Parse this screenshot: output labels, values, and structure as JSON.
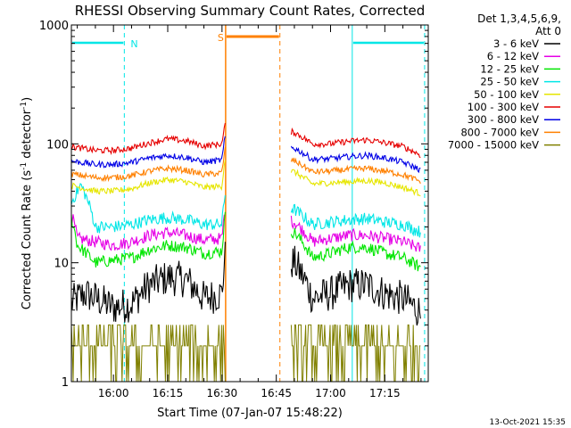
{
  "chart_data": {
    "type": "line",
    "title": "RHESSI Observing Summary Count Rates, Corrected",
    "xlabel": "Start Time (07-Jan-07 15:48:22)",
    "ylabel": "Corrected Count Rate (s⁻¹ detector⁻¹)",
    "ylabel_plain": "Corrected Count Rate (s",
    "ylabel_exp1": "-1",
    "ylabel_mid": " detector",
    "ylabel_exp2": "-1",
    "ylabel_end": ")",
    "y_scale": "log",
    "ylim": [
      1,
      1000
    ],
    "xlim": [
      "15:48:22",
      "17:27:00"
    ],
    "x_ticks": [
      "16:00",
      "16:15",
      "16:30",
      "16:45",
      "17:00",
      "17:15"
    ],
    "y_ticks": [
      "1",
      "10",
      "100",
      "1000"
    ],
    "legend_title_1": "Det 1,3,4,5,6,9,",
    "legend_title_2": "Att 0",
    "legend_placement": "right",
    "timestamp": "13-Oct-2021 15:35",
    "series": [
      {
        "name": "3 - 6 keV",
        "color": "#000000",
        "points": [
          [
            "15:48",
            4.5
          ],
          [
            "15:52",
            5.5
          ],
          [
            "16:00",
            4.2
          ],
          [
            "16:05",
            4.5
          ],
          [
            "16:10",
            6.5
          ],
          [
            "16:15",
            7.5
          ],
          [
            "16:20",
            7.2
          ],
          [
            "16:25",
            5.0
          ],
          [
            "16:30",
            5.5
          ],
          [
            "16:31",
            12
          ],
          [
            "16:50",
            10
          ],
          [
            "16:55",
            5.0
          ],
          [
            "17:00",
            5.5
          ],
          [
            "17:05",
            6.5
          ],
          [
            "17:10",
            6.5
          ],
          [
            "17:15",
            5.5
          ],
          [
            "17:20",
            5.0
          ],
          [
            "17:25",
            3.8
          ]
        ]
      },
      {
        "name": "6 - 12 keV",
        "color": "#e600e6",
        "points": [
          [
            "15:48",
            28
          ],
          [
            "15:50",
            16
          ],
          [
            "16:00",
            14
          ],
          [
            "16:05",
            15
          ],
          [
            "16:10",
            17
          ],
          [
            "16:15",
            18
          ],
          [
            "16:20",
            17
          ],
          [
            "16:25",
            15.5
          ],
          [
            "16:30",
            16
          ],
          [
            "16:31",
            30
          ],
          [
            "16:50",
            22
          ],
          [
            "16:55",
            15
          ],
          [
            "17:00",
            16
          ],
          [
            "17:05",
            17
          ],
          [
            "17:10",
            17
          ],
          [
            "17:15",
            16
          ],
          [
            "17:20",
            15
          ],
          [
            "17:25",
            13
          ]
        ]
      },
      {
        "name": "12 - 25 keV",
        "color": "#00e600",
        "points": [
          [
            "15:48",
            26
          ],
          [
            "15:50",
            14
          ],
          [
            "15:55",
            10
          ],
          [
            "16:00",
            10.5
          ],
          [
            "16:05",
            11
          ],
          [
            "16:10",
            13
          ],
          [
            "16:15",
            14
          ],
          [
            "16:20",
            13.5
          ],
          [
            "16:25",
            12
          ],
          [
            "16:30",
            12.5
          ],
          [
            "16:31",
            26
          ],
          [
            "16:50",
            18
          ],
          [
            "16:55",
            11
          ],
          [
            "17:00",
            12
          ],
          [
            "17:05",
            13.5
          ],
          [
            "17:10",
            13.5
          ],
          [
            "17:15",
            12
          ],
          [
            "17:20",
            11
          ],
          [
            "17:25",
            9
          ]
        ]
      },
      {
        "name": "25 - 50 keV",
        "color": "#00e6e6",
        "points": [
          [
            "15:48",
            30
          ],
          [
            "15:51",
            45
          ],
          [
            "15:55",
            20
          ],
          [
            "16:00",
            20
          ],
          [
            "16:05",
            21
          ],
          [
            "16:10",
            23
          ],
          [
            "16:15",
            24
          ],
          [
            "16:20",
            23
          ],
          [
            "16:25",
            21
          ],
          [
            "16:30",
            21
          ],
          [
            "16:31",
            40
          ],
          [
            "16:50",
            28
          ],
          [
            "16:55",
            21
          ],
          [
            "17:00",
            22
          ],
          [
            "17:05",
            23
          ],
          [
            "17:10",
            23.5
          ],
          [
            "17:15",
            22
          ],
          [
            "17:20",
            21
          ],
          [
            "17:25",
            18
          ]
        ]
      },
      {
        "name": "50 - 100 keV",
        "color": "#e6e600",
        "points": [
          [
            "15:48",
            45
          ],
          [
            "15:55",
            40
          ],
          [
            "16:00",
            40
          ],
          [
            "16:05",
            42
          ],
          [
            "16:10",
            47
          ],
          [
            "16:15",
            50
          ],
          [
            "16:20",
            48
          ],
          [
            "16:25",
            43
          ],
          [
            "16:30",
            44
          ],
          [
            "16:31",
            80
          ],
          [
            "16:50",
            58
          ],
          [
            "16:55",
            46
          ],
          [
            "17:00",
            47
          ],
          [
            "17:05",
            48
          ],
          [
            "17:10",
            49
          ],
          [
            "17:15",
            47
          ],
          [
            "17:20",
            43
          ],
          [
            "17:25",
            38
          ]
        ]
      },
      {
        "name": "100 - 300 keV",
        "color": "#e60000",
        "points": [
          [
            "15:48",
            95
          ],
          [
            "15:55",
            88
          ],
          [
            "16:00",
            88
          ],
          [
            "16:05",
            92
          ],
          [
            "16:10",
            102
          ],
          [
            "16:15",
            110
          ],
          [
            "16:20",
            106
          ],
          [
            "16:25",
            96
          ],
          [
            "16:30",
            100
          ],
          [
            "16:31",
            150
          ],
          [
            "16:50",
            125
          ],
          [
            "16:55",
            100
          ],
          [
            "17:00",
            100
          ],
          [
            "17:05",
            105
          ],
          [
            "17:10",
            108
          ],
          [
            "17:15",
            102
          ],
          [
            "17:20",
            95
          ],
          [
            "17:25",
            80
          ]
        ]
      },
      {
        "name": "300 - 800 keV",
        "color": "#0000e6",
        "points": [
          [
            "15:48",
            72
          ],
          [
            "15:55",
            67
          ],
          [
            "16:00",
            67
          ],
          [
            "16:05",
            70
          ],
          [
            "16:10",
            76
          ],
          [
            "16:15",
            80
          ],
          [
            "16:20",
            77
          ],
          [
            "16:25",
            70
          ],
          [
            "16:30",
            73
          ],
          [
            "16:31",
            120
          ],
          [
            "16:50",
            92
          ],
          [
            "16:55",
            74
          ],
          [
            "17:00",
            75
          ],
          [
            "17:05",
            78
          ],
          [
            "17:10",
            80
          ],
          [
            "17:15",
            76
          ],
          [
            "17:20",
            70
          ],
          [
            "17:25",
            60
          ]
        ]
      },
      {
        "name": "800 - 7000 keV",
        "color": "#ff8000",
        "points": [
          [
            "15:48",
            56
          ],
          [
            "15:55",
            52
          ],
          [
            "16:00",
            52
          ],
          [
            "16:05",
            54
          ],
          [
            "16:10",
            59
          ],
          [
            "16:15",
            62
          ],
          [
            "16:20",
            60
          ],
          [
            "16:25",
            55
          ],
          [
            "16:30",
            57
          ],
          [
            "16:31",
            95
          ],
          [
            "16:50",
            72
          ],
          [
            "16:55",
            58
          ],
          [
            "17:00",
            59
          ],
          [
            "17:05",
            61
          ],
          [
            "17:10",
            62
          ],
          [
            "17:15",
            59
          ],
          [
            "17:20",
            55
          ],
          [
            "17:25",
            48
          ]
        ]
      },
      {
        "name": "7000 - 15000 keV",
        "color": "#808000",
        "points": [
          [
            "15:48",
            1.5
          ],
          [
            "15:55",
            2.0
          ],
          [
            "16:00",
            1.5
          ],
          [
            "16:05",
            2.5
          ],
          [
            "16:10",
            2.0
          ],
          [
            "16:15",
            2.0
          ],
          [
            "16:20",
            2.5
          ],
          [
            "16:25",
            2.0
          ],
          [
            "16:30",
            2.0
          ],
          [
            "16:55",
            1.5
          ],
          [
            "17:00",
            2.5
          ],
          [
            "17:05",
            2.0
          ],
          [
            "17:10",
            2.0
          ],
          [
            "17:15",
            2.5
          ],
          [
            "17:20",
            2.0
          ],
          [
            "17:25",
            1.5
          ]
        ]
      }
    ],
    "annotations": [
      {
        "label": "N",
        "kind": "night",
        "color": "#00e6e6",
        "intervals": [
          [
            "15:48:22",
            "16:03"
          ],
          [
            "17:06",
            "17:26"
          ]
        ]
      },
      {
        "label": "S",
        "kind": "saa",
        "color": "#ff8000",
        "intervals": [
          [
            "16:31",
            "16:46"
          ]
        ]
      }
    ]
  }
}
